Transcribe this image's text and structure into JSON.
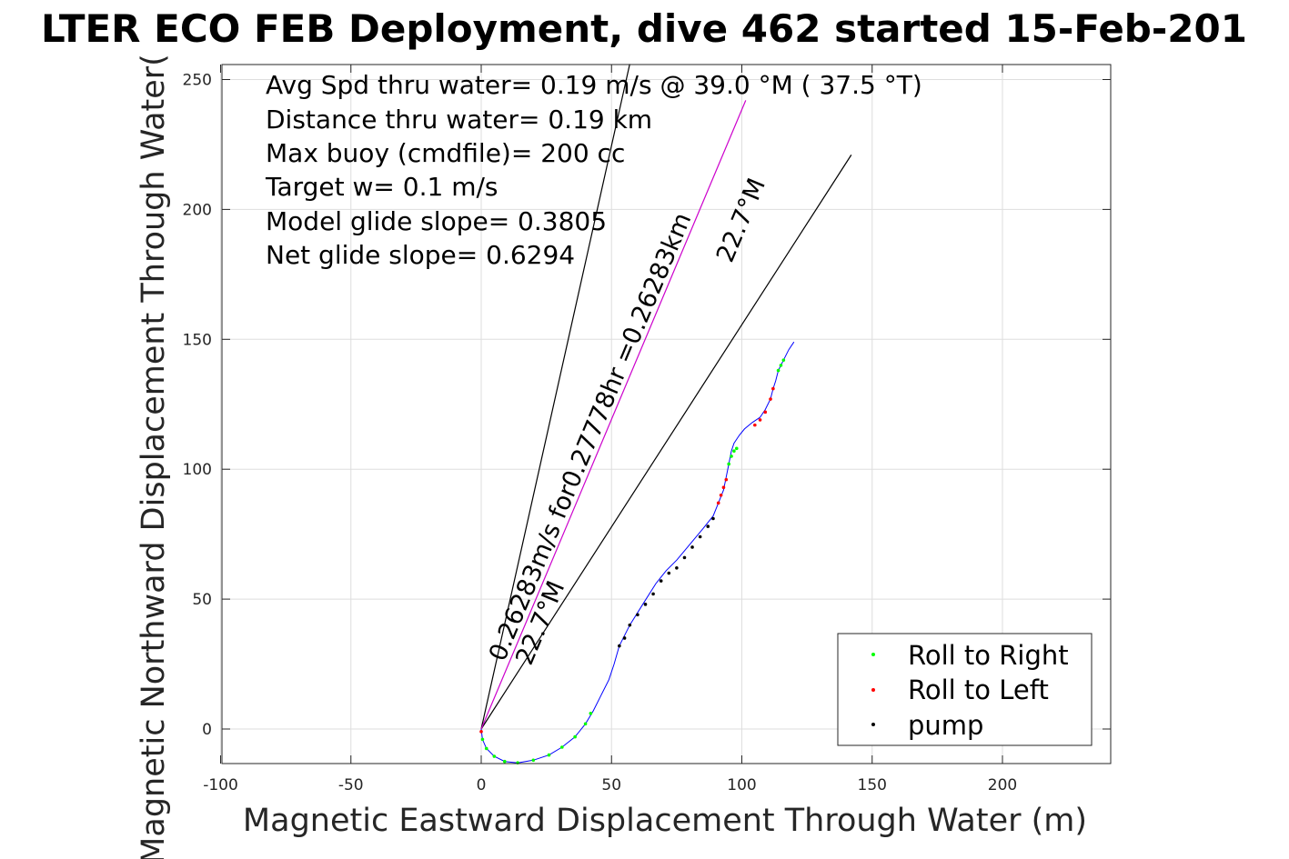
{
  "chart_data": {
    "type": "line",
    "title": "LTER ECO FEB Deployment, dive 462 started 15-Feb-201",
    "xlabel": "Magnetic Eastward Displacement Through Water (m)",
    "ylabel": "Magnetic Northward Displacement Through Water(",
    "xlim": [
      -100,
      240
    ],
    "ylim": [
      -13,
      256
    ],
    "xticks": [
      -100,
      -50,
      0,
      50,
      100,
      150,
      200
    ],
    "yticks": [
      0,
      50,
      100,
      150,
      200,
      250
    ],
    "xtick_labels": [
      "-100",
      "-50",
      "0",
      "50",
      "100",
      "150",
      "200"
    ],
    "ytick_labels": [
      "0",
      "50",
      "100",
      "150",
      "200",
      "250"
    ],
    "grid": true,
    "legend_position": "bottom-right",
    "annotations": [
      "Avg Spd thru water=  0.19 m/s @  39.0 °M ( 37.5 °T)",
      "Distance thru water=  0.19 km",
      "Max buoy (cmdfile)= 200 cc",
      "Target w= 0.1 m/s",
      "Model glide slope= 0.3805",
      "Net glide slope= 0.6294"
    ],
    "current_label": "0.26283m/s for0.27778hr =0.26283km",
    "heading_label": "22.7°M",
    "heading_labels": [
      {
        "text": "22.7°M",
        "at": [
          19,
          24
        ]
      },
      {
        "text": "22.7°M",
        "at": [
          96,
          179
        ]
      }
    ],
    "reference_lines": [
      {
        "color": "#000000",
        "x": [
          0,
          57
        ],
        "y": [
          0,
          256
        ]
      },
      {
        "color": "#000000",
        "x": [
          0,
          142
        ],
        "y": [
          0,
          221
        ]
      },
      {
        "color": "#cc00cc",
        "x": [
          0,
          101.5
        ],
        "y": [
          0,
          242
        ]
      }
    ],
    "series": [
      {
        "name": "",
        "color": "#0000ff",
        "marker": "none",
        "x": [
          0,
          0.5,
          2,
          5,
          9,
          14,
          20,
          26,
          31,
          36,
          40,
          43,
          46,
          49,
          51,
          53,
          57,
          62,
          67,
          71,
          75,
          80,
          85,
          89,
          91,
          93,
          94,
          95,
          96,
          97,
          99,
          101,
          104,
          107,
          109,
          111,
          112,
          113,
          114,
          116,
          118,
          120
        ],
        "y": [
          0,
          -4,
          -7.5,
          -10.5,
          -12.5,
          -13,
          -12,
          -10,
          -7,
          -3,
          2,
          7,
          13,
          19,
          25,
          32,
          40,
          48,
          56,
          61,
          65,
          71,
          77,
          82,
          87,
          92,
          97,
          102,
          107,
          110,
          113,
          115.5,
          118,
          120,
          123,
          127,
          131,
          134,
          138,
          142,
          146,
          149
        ]
      },
      {
        "name": "Roll to Right",
        "color": "#00ff00",
        "marker": "dot",
        "x": [
          0.5,
          2,
          5,
          9,
          14,
          20,
          26,
          31,
          36,
          40,
          42,
          95,
          96,
          97,
          98,
          114,
          115,
          116
        ],
        "y": [
          -4,
          -7.5,
          -10.5,
          -12.5,
          -13,
          -12,
          -10,
          -7,
          -3,
          2,
          6,
          102,
          105,
          107,
          108,
          138,
          140,
          142
        ]
      },
      {
        "name": "Roll to Left",
        "color": "#ff0000",
        "marker": "dot",
        "x": [
          0,
          91,
          92,
          93,
          94,
          105,
          107,
          109,
          111,
          112
        ],
        "y": [
          -1,
          87,
          90,
          93,
          96,
          117,
          119,
          122,
          127,
          131
        ]
      },
      {
        "name": "pump",
        "color": "#000000",
        "marker": "dot",
        "x": [
          53,
          55,
          57,
          60,
          63,
          66,
          69,
          72,
          75,
          78,
          81,
          84,
          87,
          89
        ],
        "y": [
          32,
          35,
          40,
          44,
          48,
          52,
          57,
          60,
          62,
          66,
          70,
          74,
          78,
          81
        ]
      }
    ],
    "legend": [
      "Roll to Right",
      "Roll to Left",
      "pump"
    ]
  }
}
